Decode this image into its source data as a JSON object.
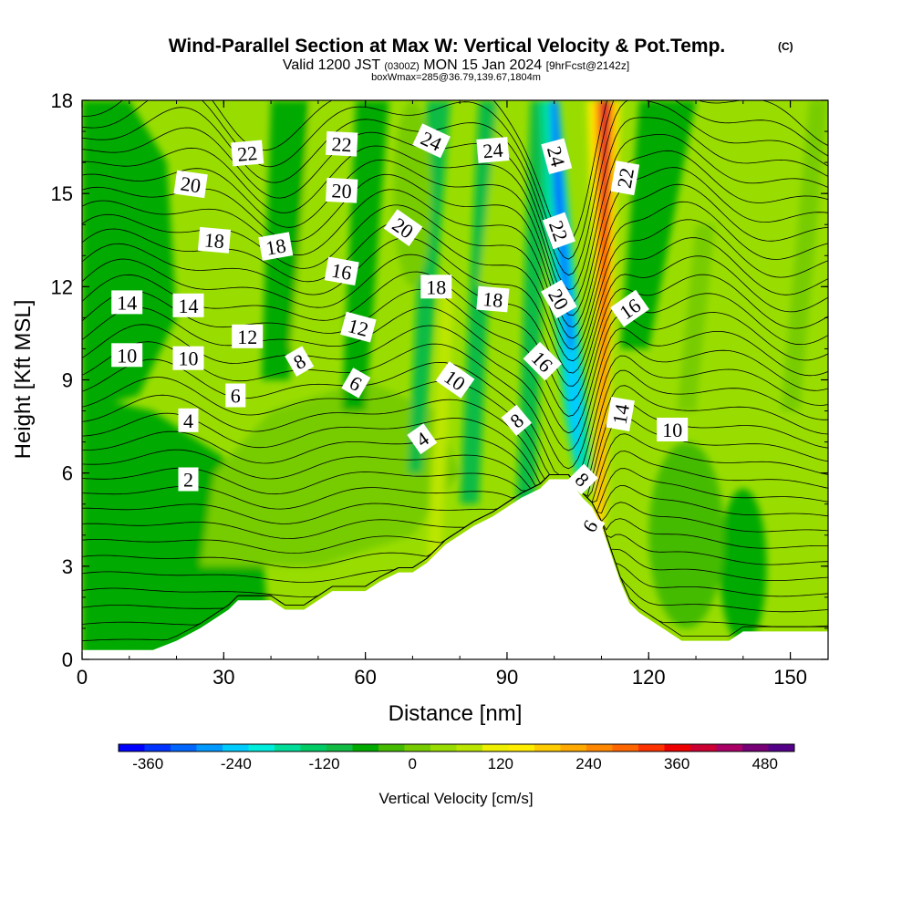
{
  "chart_data": {
    "type": "heatmap",
    "title": "Wind-Parallel Section at Max W: Vertical Velocity & Pot.Temp.",
    "title_mark": "(C)",
    "subtitle_main": "Valid 1200 JST",
    "subtitle_z": "(0300Z)",
    "subtitle_date": "MON 15 Jan 2024",
    "subtitle_fcst": "[9hrFcst@2142z]",
    "subtitle_box": "boxWmax=285@36.79,139.67,1804m",
    "xlabel": "Distance [nm]",
    "ylabel": "Height [Kft MSL]",
    "xlim": [
      0,
      158
    ],
    "ylim": [
      0,
      18
    ],
    "xticks": [
      "0",
      "30",
      "60",
      "90",
      "120",
      "150"
    ],
    "yticks": [
      "0",
      "3",
      "6",
      "9",
      "12",
      "15",
      "18"
    ],
    "colorbar": {
      "label": "Vertical Velocity [cm/s]",
      "ticks": [
        "-360",
        "-240",
        "-120",
        "0",
        "120",
        "240",
        "360",
        "480"
      ],
      "range": [
        -400,
        520
      ],
      "step": 40,
      "colors": [
        "#0000ff",
        "#0033ff",
        "#0066ff",
        "#0099ff",
        "#00ccff",
        "#00eedd",
        "#00dd99",
        "#00cc66",
        "#11bb44",
        "#00aa00",
        "#44bb00",
        "#77cc00",
        "#99dd00",
        "#bbe600",
        "#eef000",
        "#ffee00",
        "#ffcc00",
        "#ffaa00",
        "#ff8800",
        "#ff6600",
        "#ff3300",
        "#ee0000",
        "#cc0033",
        "#aa0066",
        "#770077",
        "#550088"
      ]
    },
    "terrain_kft": [
      [
        0,
        0.3
      ],
      [
        15,
        0.3
      ],
      [
        20,
        0.6
      ],
      [
        25,
        1.0
      ],
      [
        28,
        1.3
      ],
      [
        31,
        1.6
      ],
      [
        33,
        1.9
      ],
      [
        40,
        1.9
      ],
      [
        43,
        1.6
      ],
      [
        47,
        1.6
      ],
      [
        50,
        1.9
      ],
      [
        53,
        2.2
      ],
      [
        60,
        2.2
      ],
      [
        63,
        2.5
      ],
      [
        67,
        2.8
      ],
      [
        70,
        2.8
      ],
      [
        73,
        3.1
      ],
      [
        77,
        3.7
      ],
      [
        80,
        4.0
      ],
      [
        83,
        4.3
      ],
      [
        87,
        4.6
      ],
      [
        90,
        4.9
      ],
      [
        93,
        5.2
      ],
      [
        97,
        5.5
      ],
      [
        99,
        5.8
      ],
      [
        103,
        5.8
      ],
      [
        106,
        5.2
      ],
      [
        108,
        4.9
      ],
      [
        110,
        4.3
      ],
      [
        112,
        3.4
      ],
      [
        114,
        2.5
      ],
      [
        116,
        1.8
      ],
      [
        118,
        1.5
      ],
      [
        121,
        1.2
      ],
      [
        124,
        0.9
      ],
      [
        127,
        0.6
      ],
      [
        130,
        0.6
      ],
      [
        137,
        0.6
      ],
      [
        140,
        0.9
      ],
      [
        153,
        0.9
      ],
      [
        158,
        0.9
      ]
    ],
    "theta_labels": [
      {
        "text": "2",
        "x": 22.5,
        "y": 5.8,
        "rot": 0
      },
      {
        "text": "4",
        "x": 22.5,
        "y": 7.7,
        "rot": 0
      },
      {
        "text": "6",
        "x": 32.5,
        "y": 8.5,
        "rot": 0
      },
      {
        "text": "10",
        "x": 9.5,
        "y": 9.8,
        "rot": 0
      },
      {
        "text": "10",
        "x": 22.5,
        "y": 9.7,
        "rot": 0
      },
      {
        "text": "12",
        "x": 35,
        "y": 10.4,
        "rot": 0
      },
      {
        "text": "14",
        "x": 9.5,
        "y": 11.5,
        "rot": 0
      },
      {
        "text": "14",
        "x": 22.5,
        "y": 11.4,
        "rot": 0
      },
      {
        "text": "18",
        "x": 28,
        "y": 13.5,
        "rot": 5
      },
      {
        "text": "18",
        "x": 41,
        "y": 13.3,
        "rot": -10
      },
      {
        "text": "20",
        "x": 23,
        "y": 15.3,
        "rot": 8
      },
      {
        "text": "22",
        "x": 35,
        "y": 16.3,
        "rot": -5
      },
      {
        "text": "22",
        "x": 55,
        "y": 16.6,
        "rot": 3
      },
      {
        "text": "20",
        "x": 55,
        "y": 15.1,
        "rot": 3
      },
      {
        "text": "16",
        "x": 55,
        "y": 12.5,
        "rot": 10
      },
      {
        "text": "12",
        "x": 58.5,
        "y": 10.7,
        "rot": 15
      },
      {
        "text": "8",
        "x": 46,
        "y": 9.6,
        "rot": -30
      },
      {
        "text": "6",
        "x": 58,
        "y": 8.9,
        "rot": 30
      },
      {
        "text": "4",
        "x": 72,
        "y": 7.1,
        "rot": -35
      },
      {
        "text": "10",
        "x": 79,
        "y": 9.0,
        "rot": 35
      },
      {
        "text": "18",
        "x": 75,
        "y": 12.0,
        "rot": 0
      },
      {
        "text": "20",
        "x": 68,
        "y": 13.9,
        "rot": 35
      },
      {
        "text": "24",
        "x": 74,
        "y": 16.7,
        "rot": 25
      },
      {
        "text": "24",
        "x": 87,
        "y": 16.4,
        "rot": -5
      },
      {
        "text": "18",
        "x": 87,
        "y": 11.6,
        "rot": 5
      },
      {
        "text": "8",
        "x": 92,
        "y": 7.7,
        "rot": -40
      },
      {
        "text": "16",
        "x": 97.5,
        "y": 9.6,
        "rot": 45
      },
      {
        "text": "20",
        "x": 101,
        "y": 11.6,
        "rot": 60
      },
      {
        "text": "22",
        "x": 101,
        "y": 13.8,
        "rot": 70
      },
      {
        "text": "24",
        "x": 100.5,
        "y": 16.2,
        "rot": 75
      },
      {
        "text": "22",
        "x": 115,
        "y": 15.5,
        "rot": -80
      },
      {
        "text": "16",
        "x": 116,
        "y": 11.3,
        "rot": -35
      },
      {
        "text": "14",
        "x": 114,
        "y": 7.9,
        "rot": -80
      },
      {
        "text": "10",
        "x": 125,
        "y": 7.4,
        "rot": 0
      },
      {
        "text": "8",
        "x": 106,
        "y": 5.8,
        "rot": 45
      },
      {
        "text": "6",
        "x": 107.5,
        "y": 4.3,
        "rot": -60
      }
    ]
  }
}
